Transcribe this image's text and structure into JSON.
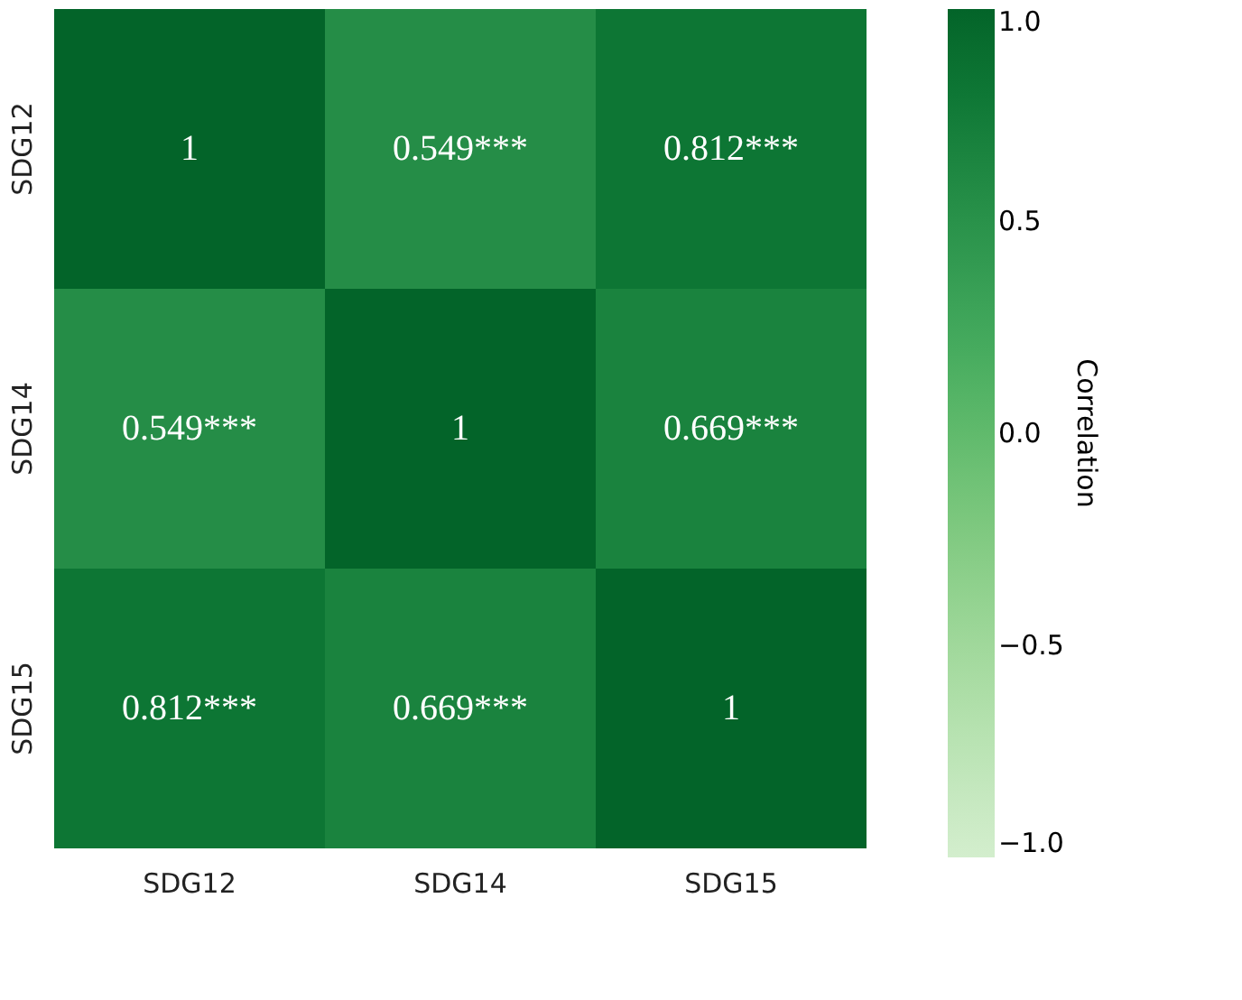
{
  "chart_data": {
    "type": "heatmap",
    "categories": [
      "SDG12",
      "SDG14",
      "SDG15"
    ],
    "y_categories": [
      "SDG12",
      "SDG14",
      "SDG15"
    ],
    "cells": [
      [
        1,
        0.549,
        0.812
      ],
      [
        0.549,
        1,
        0.669
      ],
      [
        0.812,
        0.669,
        1
      ]
    ],
    "cell_labels": [
      [
        "1",
        "0.549***",
        "0.812***"
      ],
      [
        "0.549***",
        "1",
        "0.669***"
      ],
      [
        "0.812***",
        "0.669***",
        "1"
      ]
    ],
    "clabel": "Correlation",
    "clim": [
      -1,
      1
    ],
    "cticks": [
      {
        "value": -1,
        "label": "−1.0"
      },
      {
        "value": -0.5,
        "label": "−0.5"
      },
      {
        "value": 0,
        "label": "0.0"
      },
      {
        "value": 0.5,
        "label": "0.5"
      },
      {
        "value": 1,
        "label": "1.0"
      }
    ]
  }
}
